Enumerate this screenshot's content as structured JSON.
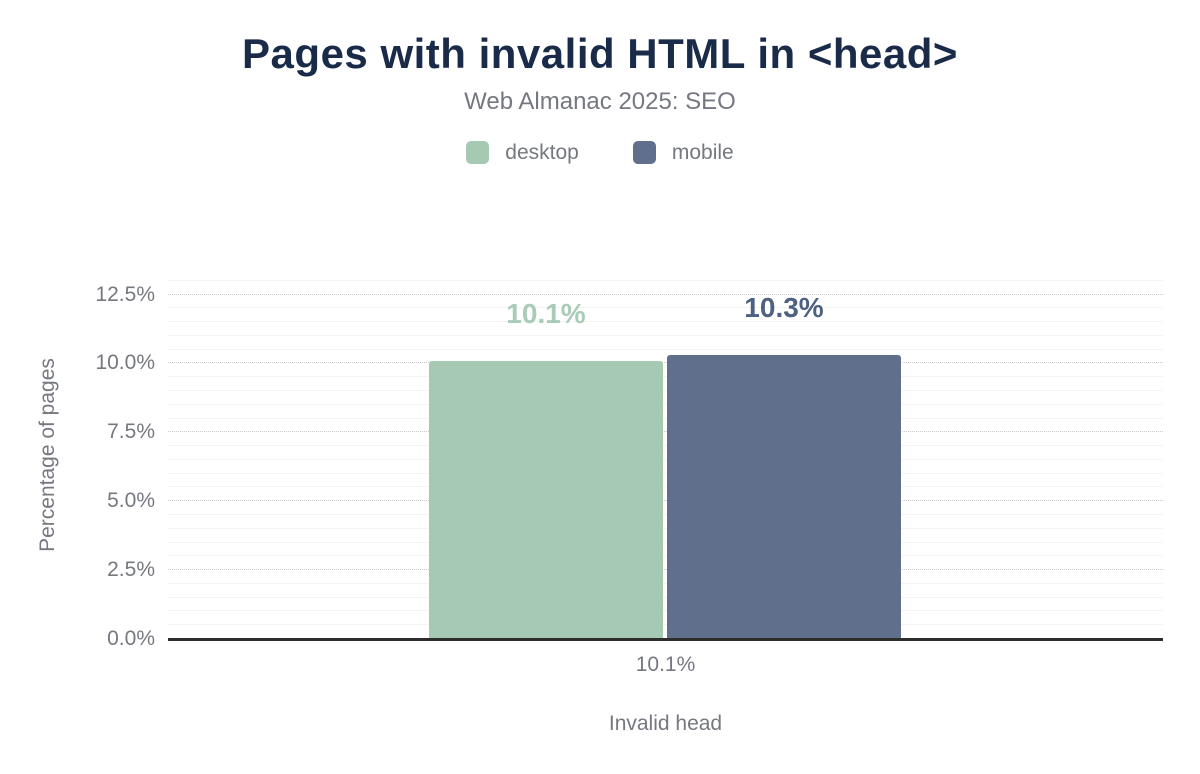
{
  "header": {
    "title": "Pages with invalid HTML in <head>",
    "subtitle": "Web Almanac 2025: SEO"
  },
  "legend": {
    "items": [
      {
        "label": "desktop",
        "color": "#a6c9b3"
      },
      {
        "label": "mobile",
        "color": "#606f8b"
      }
    ]
  },
  "colors": {
    "title": "#1a2b49",
    "muted_text": "#75787f",
    "axis_line": "#2d2d2d",
    "grid_major": "#c9c9c9",
    "grid_minor": "#f4f4f4",
    "background": "#ffffff"
  },
  "chart_data": {
    "type": "bar",
    "title": "Pages with invalid HTML in <head>",
    "subtitle": "Web Almanac 2025: SEO",
    "categories": [
      "Invalid head"
    ],
    "x_tick_labels": [
      "10.1%"
    ],
    "xlabel": "Invalid head",
    "ylabel": "Percentage of pages",
    "ylim": [
      0,
      13.1
    ],
    "y_major_ticks": [
      0,
      2.5,
      5,
      7.5,
      10,
      12.5
    ],
    "y_tick_labels": [
      "0.0%",
      "2.5%",
      "5.0%",
      "7.5%",
      "10.0%",
      "12.5%"
    ],
    "y_minor_step": 0.5,
    "grid": "horizontal: major dotted, minor solid",
    "legend_position": "top",
    "series": [
      {
        "name": "desktop",
        "values": [
          10.1
        ],
        "labels": [
          "10.1%"
        ],
        "color": "#a6c9b3",
        "label_color": "#a8ccb8"
      },
      {
        "name": "mobile",
        "values": [
          10.3
        ],
        "labels": [
          "10.3%"
        ],
        "color": "#606f8b",
        "label_color": "#4d6181"
      }
    ]
  }
}
